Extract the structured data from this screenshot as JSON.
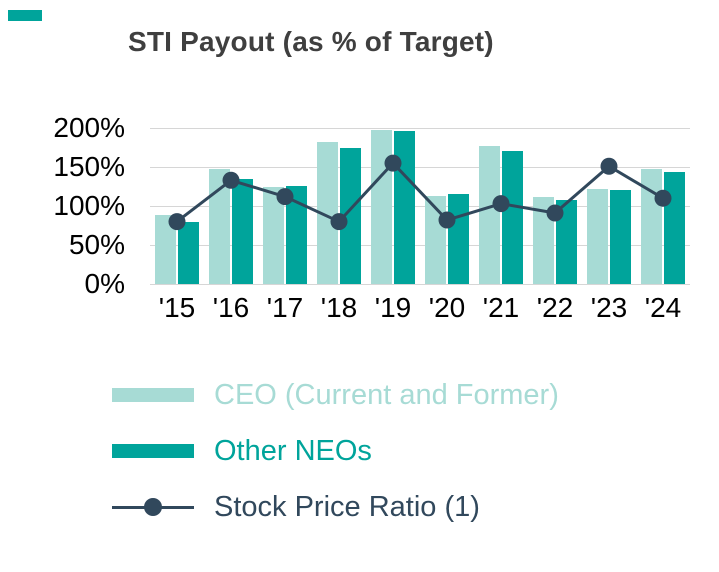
{
  "title": "STI Payout (as % of Target)",
  "accent_color": "#00A49B",
  "chart_data": {
    "type": "bar",
    "title": "STI Payout (as % of Target)",
    "categories": [
      "'15",
      "'16",
      "'17",
      "'18",
      "'19",
      "'20",
      "'21",
      "'22",
      "'23",
      "'24"
    ],
    "series": [
      {
        "name": "CEO (Current and Former)",
        "kind": "bar",
        "color": "#A7DBD5",
        "values": [
          88,
          147,
          125,
          182,
          198,
          113,
          177,
          112,
          122,
          147
        ]
      },
      {
        "name": "Other NEOs",
        "kind": "bar",
        "color": "#00A49B",
        "values": [
          80,
          134,
          126,
          174,
          196,
          115,
          171,
          108,
          120,
          144
        ]
      },
      {
        "name": "Stock Price Ratio (1)",
        "kind": "line",
        "color": "#31485C",
        "values": [
          80,
          133,
          112,
          80,
          155,
          82,
          103,
          91,
          151,
          110
        ]
      }
    ],
    "ylim": [
      0,
      200
    ],
    "ytick_labels": [
      "200%",
      "150%",
      "100%",
      "50%",
      "0%"
    ],
    "xlabel": "",
    "ylabel": "",
    "grid": true,
    "gridline_color": "#D6D6D6",
    "legend_position": "bottom"
  },
  "legend": {
    "items": [
      {
        "label": "CEO (Current and Former)",
        "color": "#A7DBD5",
        "marker": "bar"
      },
      {
        "label": "Other NEOs",
        "color": "#00A49B",
        "marker": "bar"
      },
      {
        "label": "Stock Price Ratio (1)",
        "color": "#31485C",
        "marker": "line-dot"
      }
    ]
  }
}
